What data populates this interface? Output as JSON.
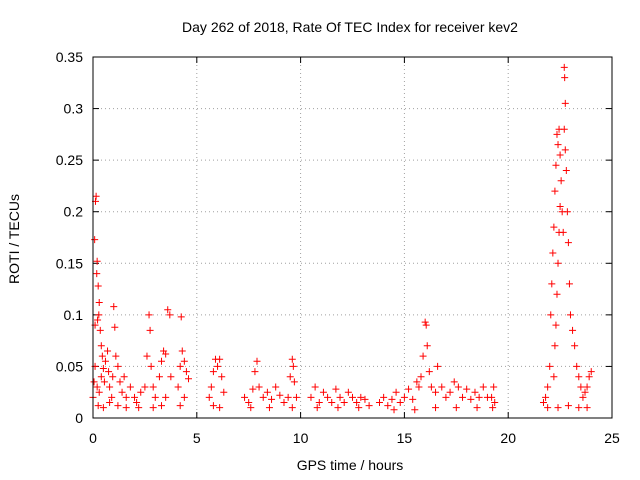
{
  "chart_data": {
    "type": "scatter",
    "title": "Day 262 of 2018, Rate Of TEC Index for receiver kev2",
    "xlabel": "GPS time / hours",
    "ylabel": "ROTI / TECUs",
    "xlim": [
      0,
      25
    ],
    "ylim": [
      0,
      0.35
    ],
    "xticks": [
      0,
      5,
      10,
      15,
      20,
      25
    ],
    "xtick_labels": [
      "0",
      "5",
      "10",
      "15",
      "20",
      "25"
    ],
    "yticks": [
      0,
      0.05,
      0.1,
      0.15,
      0.2,
      0.25,
      0.3,
      0.35
    ],
    "ytick_labels": [
      "0",
      "0.05",
      "0.1",
      "0.15",
      "0.2",
      "0.25",
      "0.3",
      "0.35"
    ],
    "grid": true,
    "marker": "+",
    "color": "#ff0000",
    "series": [
      {
        "name": "ROTI",
        "points": [
          [
            0.0,
            0.02
          ],
          [
            0.05,
            0.035
          ],
          [
            0.1,
            0.05
          ],
          [
            0.1,
            0.09
          ],
          [
            0.12,
            0.21
          ],
          [
            0.15,
            0.215
          ],
          [
            0.08,
            0.173
          ],
          [
            0.2,
            0.152
          ],
          [
            0.18,
            0.14
          ],
          [
            0.25,
            0.128
          ],
          [
            0.3,
            0.112
          ],
          [
            0.28,
            0.1
          ],
          [
            0.22,
            0.095
          ],
          [
            0.35,
            0.085
          ],
          [
            0.4,
            0.07
          ],
          [
            0.45,
            0.06
          ],
          [
            0.5,
            0.048
          ],
          [
            0.2,
            0.03
          ],
          [
            0.3,
            0.025
          ],
          [
            0.4,
            0.04
          ],
          [
            0.55,
            0.035
          ],
          [
            0.6,
            0.055
          ],
          [
            0.7,
            0.065
          ],
          [
            0.75,
            0.045
          ],
          [
            0.8,
            0.03
          ],
          [
            0.9,
            0.02
          ],
          [
            0.95,
            0.04
          ],
          [
            1.0,
            0.108
          ],
          [
            1.05,
            0.088
          ],
          [
            1.1,
            0.06
          ],
          [
            1.2,
            0.05
          ],
          [
            1.3,
            0.035
          ],
          [
            1.4,
            0.025
          ],
          [
            1.5,
            0.04
          ],
          [
            1.6,
            0.02
          ],
          [
            0.25,
            0.012
          ],
          [
            0.5,
            0.01
          ],
          [
            0.8,
            0.015
          ],
          [
            1.2,
            0.012
          ],
          [
            1.6,
            0.01
          ],
          [
            1.8,
            0.03
          ],
          [
            2.0,
            0.02
          ],
          [
            2.1,
            0.015
          ],
          [
            2.3,
            0.025
          ],
          [
            2.5,
            0.03
          ],
          [
            2.6,
            0.06
          ],
          [
            2.7,
            0.1
          ],
          [
            2.75,
            0.085
          ],
          [
            2.8,
            0.05
          ],
          [
            2.9,
            0.03
          ],
          [
            3.0,
            0.02
          ],
          [
            3.2,
            0.04
          ],
          [
            3.3,
            0.055
          ],
          [
            3.4,
            0.065
          ],
          [
            3.5,
            0.062
          ],
          [
            3.6,
            0.105
          ],
          [
            3.7,
            0.1
          ],
          [
            3.75,
            0.04
          ],
          [
            3.5,
            0.02
          ],
          [
            2.2,
            0.01
          ],
          [
            2.9,
            0.01
          ],
          [
            3.3,
            0.012
          ],
          [
            4.1,
            0.03
          ],
          [
            4.2,
            0.05
          ],
          [
            4.25,
            0.098
          ],
          [
            4.3,
            0.065
          ],
          [
            4.4,
            0.055
          ],
          [
            4.5,
            0.045
          ],
          [
            4.6,
            0.038
          ],
          [
            4.4,
            0.02
          ],
          [
            4.2,
            0.012
          ],
          [
            5.6,
            0.02
          ],
          [
            5.7,
            0.03
          ],
          [
            5.8,
            0.045
          ],
          [
            5.9,
            0.057
          ],
          [
            6.0,
            0.05
          ],
          [
            6.1,
            0.057
          ],
          [
            6.2,
            0.04
          ],
          [
            6.3,
            0.025
          ],
          [
            5.8,
            0.012
          ],
          [
            6.1,
            0.01
          ],
          [
            7.3,
            0.02
          ],
          [
            7.5,
            0.015
          ],
          [
            7.7,
            0.028
          ],
          [
            7.8,
            0.045
          ],
          [
            7.9,
            0.055
          ],
          [
            8.0,
            0.03
          ],
          [
            8.2,
            0.02
          ],
          [
            8.4,
            0.025
          ],
          [
            8.6,
            0.018
          ],
          [
            8.8,
            0.03
          ],
          [
            9.0,
            0.022
          ],
          [
            9.2,
            0.015
          ],
          [
            7.6,
            0.01
          ],
          [
            8.5,
            0.01
          ],
          [
            9.4,
            0.02
          ],
          [
            9.5,
            0.04
          ],
          [
            9.6,
            0.057
          ],
          [
            9.65,
            0.05
          ],
          [
            9.7,
            0.035
          ],
          [
            9.8,
            0.02
          ],
          [
            9.6,
            0.01
          ],
          [
            10.5,
            0.02
          ],
          [
            10.7,
            0.03
          ],
          [
            10.9,
            0.015
          ],
          [
            11.1,
            0.025
          ],
          [
            11.3,
            0.02
          ],
          [
            11.5,
            0.015
          ],
          [
            11.7,
            0.028
          ],
          [
            11.9,
            0.02
          ],
          [
            12.1,
            0.015
          ],
          [
            12.3,
            0.025
          ],
          [
            12.5,
            0.02
          ],
          [
            12.7,
            0.015
          ],
          [
            12.9,
            0.02
          ],
          [
            13.1,
            0.018
          ],
          [
            13.3,
            0.012
          ],
          [
            10.8,
            0.01
          ],
          [
            11.8,
            0.01
          ],
          [
            12.8,
            0.01
          ],
          [
            13.8,
            0.015
          ],
          [
            14.0,
            0.02
          ],
          [
            14.2,
            0.012
          ],
          [
            14.4,
            0.018
          ],
          [
            14.6,
            0.025
          ],
          [
            14.8,
            0.015
          ],
          [
            15.0,
            0.02
          ],
          [
            15.2,
            0.028
          ],
          [
            15.4,
            0.018
          ],
          [
            15.6,
            0.035
          ],
          [
            15.7,
            0.03
          ],
          [
            15.8,
            0.04
          ],
          [
            15.9,
            0.06
          ],
          [
            16.0,
            0.093
          ],
          [
            16.05,
            0.09
          ],
          [
            16.1,
            0.07
          ],
          [
            16.2,
            0.045
          ],
          [
            16.3,
            0.03
          ],
          [
            16.5,
            0.025
          ],
          [
            16.6,
            0.05
          ],
          [
            16.8,
            0.03
          ],
          [
            17.0,
            0.02
          ],
          [
            17.2,
            0.025
          ],
          [
            17.4,
            0.035
          ],
          [
            17.6,
            0.03
          ],
          [
            17.8,
            0.02
          ],
          [
            18.0,
            0.028
          ],
          [
            18.2,
            0.018
          ],
          [
            18.4,
            0.025
          ],
          [
            18.6,
            0.02
          ],
          [
            18.8,
            0.03
          ],
          [
            19.0,
            0.02
          ],
          [
            14.5,
            0.008
          ],
          [
            15.5,
            0.008
          ],
          [
            16.5,
            0.01
          ],
          [
            17.5,
            0.01
          ],
          [
            18.5,
            0.01
          ],
          [
            19.2,
            0.02
          ],
          [
            19.3,
            0.03
          ],
          [
            19.35,
            0.015
          ],
          [
            19.25,
            0.01
          ],
          [
            21.7,
            0.015
          ],
          [
            21.8,
            0.02
          ],
          [
            21.9,
            0.03
          ],
          [
            22.0,
            0.05
          ],
          [
            22.05,
            0.1
          ],
          [
            22.1,
            0.13
          ],
          [
            22.15,
            0.16
          ],
          [
            22.2,
            0.185
          ],
          [
            22.25,
            0.22
          ],
          [
            22.3,
            0.245
          ],
          [
            22.35,
            0.275
          ],
          [
            22.4,
            0.265
          ],
          [
            22.45,
            0.28
          ],
          [
            22.5,
            0.255
          ],
          [
            22.55,
            0.23
          ],
          [
            22.5,
            0.205
          ],
          [
            22.45,
            0.18
          ],
          [
            22.4,
            0.15
          ],
          [
            22.35,
            0.12
          ],
          [
            22.3,
            0.09
          ],
          [
            22.25,
            0.07
          ],
          [
            22.2,
            0.04
          ],
          [
            22.6,
            0.2
          ],
          [
            22.65,
            0.18
          ],
          [
            22.7,
            0.34
          ],
          [
            22.72,
            0.33
          ],
          [
            22.75,
            0.305
          ],
          [
            22.7,
            0.28
          ],
          [
            22.75,
            0.26
          ],
          [
            22.8,
            0.24
          ],
          [
            22.85,
            0.2
          ],
          [
            22.9,
            0.17
          ],
          [
            22.95,
            0.13
          ],
          [
            23.0,
            0.1
          ],
          [
            23.1,
            0.085
          ],
          [
            23.2,
            0.07
          ],
          [
            23.3,
            0.05
          ],
          [
            23.4,
            0.04
          ],
          [
            23.5,
            0.03
          ],
          [
            23.6,
            0.02
          ],
          [
            23.7,
            0.025
          ],
          [
            23.8,
            0.03
          ],
          [
            23.9,
            0.04
          ],
          [
            24.0,
            0.045
          ],
          [
            21.9,
            0.01
          ],
          [
            22.4,
            0.01
          ],
          [
            22.9,
            0.012
          ],
          [
            23.4,
            0.01
          ],
          [
            23.8,
            0.01
          ]
        ]
      }
    ]
  }
}
